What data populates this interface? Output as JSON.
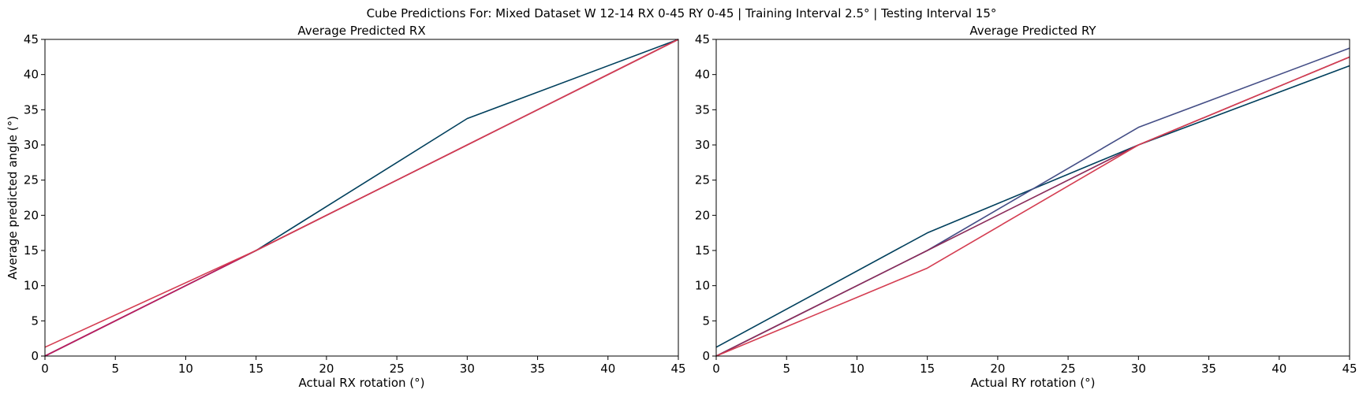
{
  "figure": {
    "title": "Cube Predictions For: Mixed Dataset W 12-14 RX 0-45 RY 0-45 | Training Interval 2.5° | Testing Interval 15°"
  },
  "chart_data": [
    {
      "type": "line",
      "title": "Average Predicted RX",
      "xlabel": "Actual RX rotation (°)",
      "ylabel": "Average predicted angle (°)",
      "xlim": [
        0,
        45
      ],
      "ylim": [
        0,
        45
      ],
      "xticks": [
        0,
        5,
        10,
        15,
        20,
        25,
        30,
        35,
        40,
        45
      ],
      "yticks": [
        0,
        5,
        10,
        15,
        20,
        25,
        30,
        35,
        40,
        45
      ],
      "grid": false,
      "x": [
        0,
        15,
        30,
        45
      ],
      "series": [
        {
          "color": "#003f5c",
          "values": [
            0,
            15,
            33.75,
            45
          ]
        },
        {
          "color": "#444e86",
          "values": [
            0,
            15,
            30,
            45
          ]
        },
        {
          "color": "#c2185b",
          "values": [
            0,
            15,
            30,
            45
          ]
        },
        {
          "color": "#d43d51",
          "values": [
            1.25,
            15,
            30,
            45
          ]
        }
      ]
    },
    {
      "type": "line",
      "title": "Average Predicted RY",
      "xlabel": "Actual RY rotation (°)",
      "ylabel": "",
      "xlim": [
        0,
        45
      ],
      "ylim": [
        0,
        45
      ],
      "xticks": [
        0,
        5,
        10,
        15,
        20,
        25,
        30,
        35,
        40,
        45
      ],
      "yticks": [
        0,
        5,
        10,
        15,
        20,
        25,
        30,
        35,
        40,
        45
      ],
      "grid": false,
      "x": [
        0,
        15,
        30,
        45
      ],
      "series": [
        {
          "color": "#003f5c",
          "values": [
            1.25,
            17.5,
            30,
            41.25
          ]
        },
        {
          "color": "#444e86",
          "values": [
            0,
            15,
            32.5,
            43.75
          ]
        },
        {
          "color": "#8a2b5a",
          "values": [
            0,
            15,
            30,
            42.5
          ]
        },
        {
          "color": "#d43d51",
          "values": [
            0,
            12.5,
            30,
            42.5
          ]
        }
      ]
    }
  ]
}
